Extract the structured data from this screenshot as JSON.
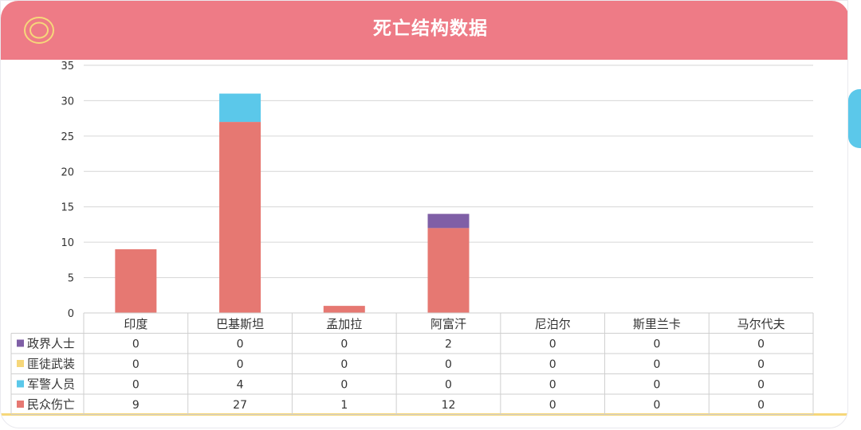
{
  "header": {
    "title": "死亡结构数据",
    "icon": "target-rings-icon"
  },
  "colors": {
    "header_bg": "#ee7b86",
    "civilian": "#e67872",
    "military_police": "#5bc8ea",
    "militant": "#f6d77a",
    "political": "#7f5fa6",
    "side_tab": "#5bc8ea"
  },
  "chart_data": {
    "type": "bar",
    "stacked": true,
    "categories": [
      "印度",
      "巴基斯坦",
      "孟加拉",
      "阿富汗",
      "尼泊尔",
      "斯里兰卡",
      "马尔代夫"
    ],
    "series": [
      {
        "name": "民众伤亡",
        "values": [
          9,
          27,
          1,
          12,
          0,
          0,
          0
        ],
        "color": "#e67872"
      },
      {
        "name": "军警人员",
        "values": [
          0,
          4,
          0,
          0,
          0,
          0,
          0
        ],
        "color": "#5bc8ea"
      },
      {
        "name": "匪徒武装",
        "values": [
          0,
          0,
          0,
          0,
          0,
          0,
          0
        ],
        "color": "#f6d77a"
      },
      {
        "name": "政界人士",
        "values": [
          0,
          0,
          0,
          2,
          0,
          0,
          0
        ],
        "color": "#7f5fa6"
      }
    ],
    "table_order": [
      "政界人士",
      "匪徒武装",
      "军警人员",
      "民众伤亡"
    ],
    "ylim": [
      0,
      35
    ],
    "yticks": [
      0,
      5,
      10,
      15,
      20,
      25,
      30,
      35
    ],
    "grid": true,
    "legend": "data-table-left"
  }
}
